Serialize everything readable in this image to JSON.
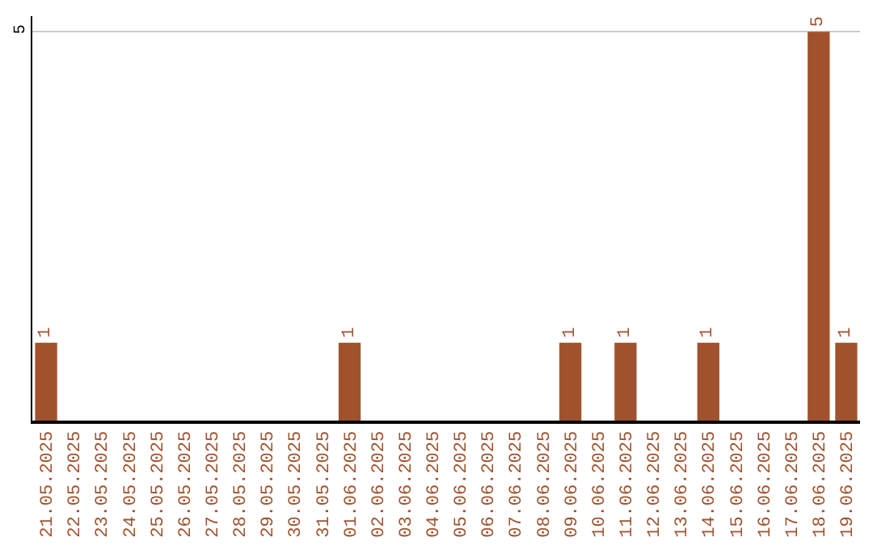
{
  "chart_data": {
    "type": "bar",
    "categories": [
      "21.05.2025",
      "22.05.2025",
      "23.05.2025",
      "24.05.2025",
      "25.05.2025",
      "26.05.2025",
      "27.05.2025",
      "28.05.2025",
      "29.05.2025",
      "30.05.2025",
      "31.05.2025",
      "01.06.2025",
      "02.06.2025",
      "03.06.2025",
      "04.06.2025",
      "05.06.2025",
      "06.06.2025",
      "07.06.2025",
      "08.06.2025",
      "09.06.2025",
      "10.06.2025",
      "11.06.2025",
      "12.06.2025",
      "13.06.2025",
      "14.06.2025",
      "15.06.2025",
      "16.06.2025",
      "17.06.2025",
      "18.06.2025",
      "19.06.2025"
    ],
    "values": [
      1,
      0,
      0,
      0,
      0,
      0,
      0,
      0,
      0,
      0,
      0,
      1,
      0,
      0,
      0,
      0,
      0,
      0,
      0,
      1,
      0,
      1,
      0,
      0,
      1,
      0,
      0,
      0,
      5,
      1
    ],
    "value_labels": [
      "1",
      null,
      null,
      null,
      null,
      null,
      null,
      null,
      null,
      null,
      null,
      "1",
      null,
      null,
      null,
      null,
      null,
      null,
      null,
      "1",
      null,
      "1",
      null,
      null,
      "1",
      null,
      null,
      null,
      "5",
      "1"
    ],
    "color": "#a0522d",
    "ylim": [
      0,
      5.2
    ],
    "yticks": [
      5
    ],
    "grid": "y",
    "legend": false
  }
}
